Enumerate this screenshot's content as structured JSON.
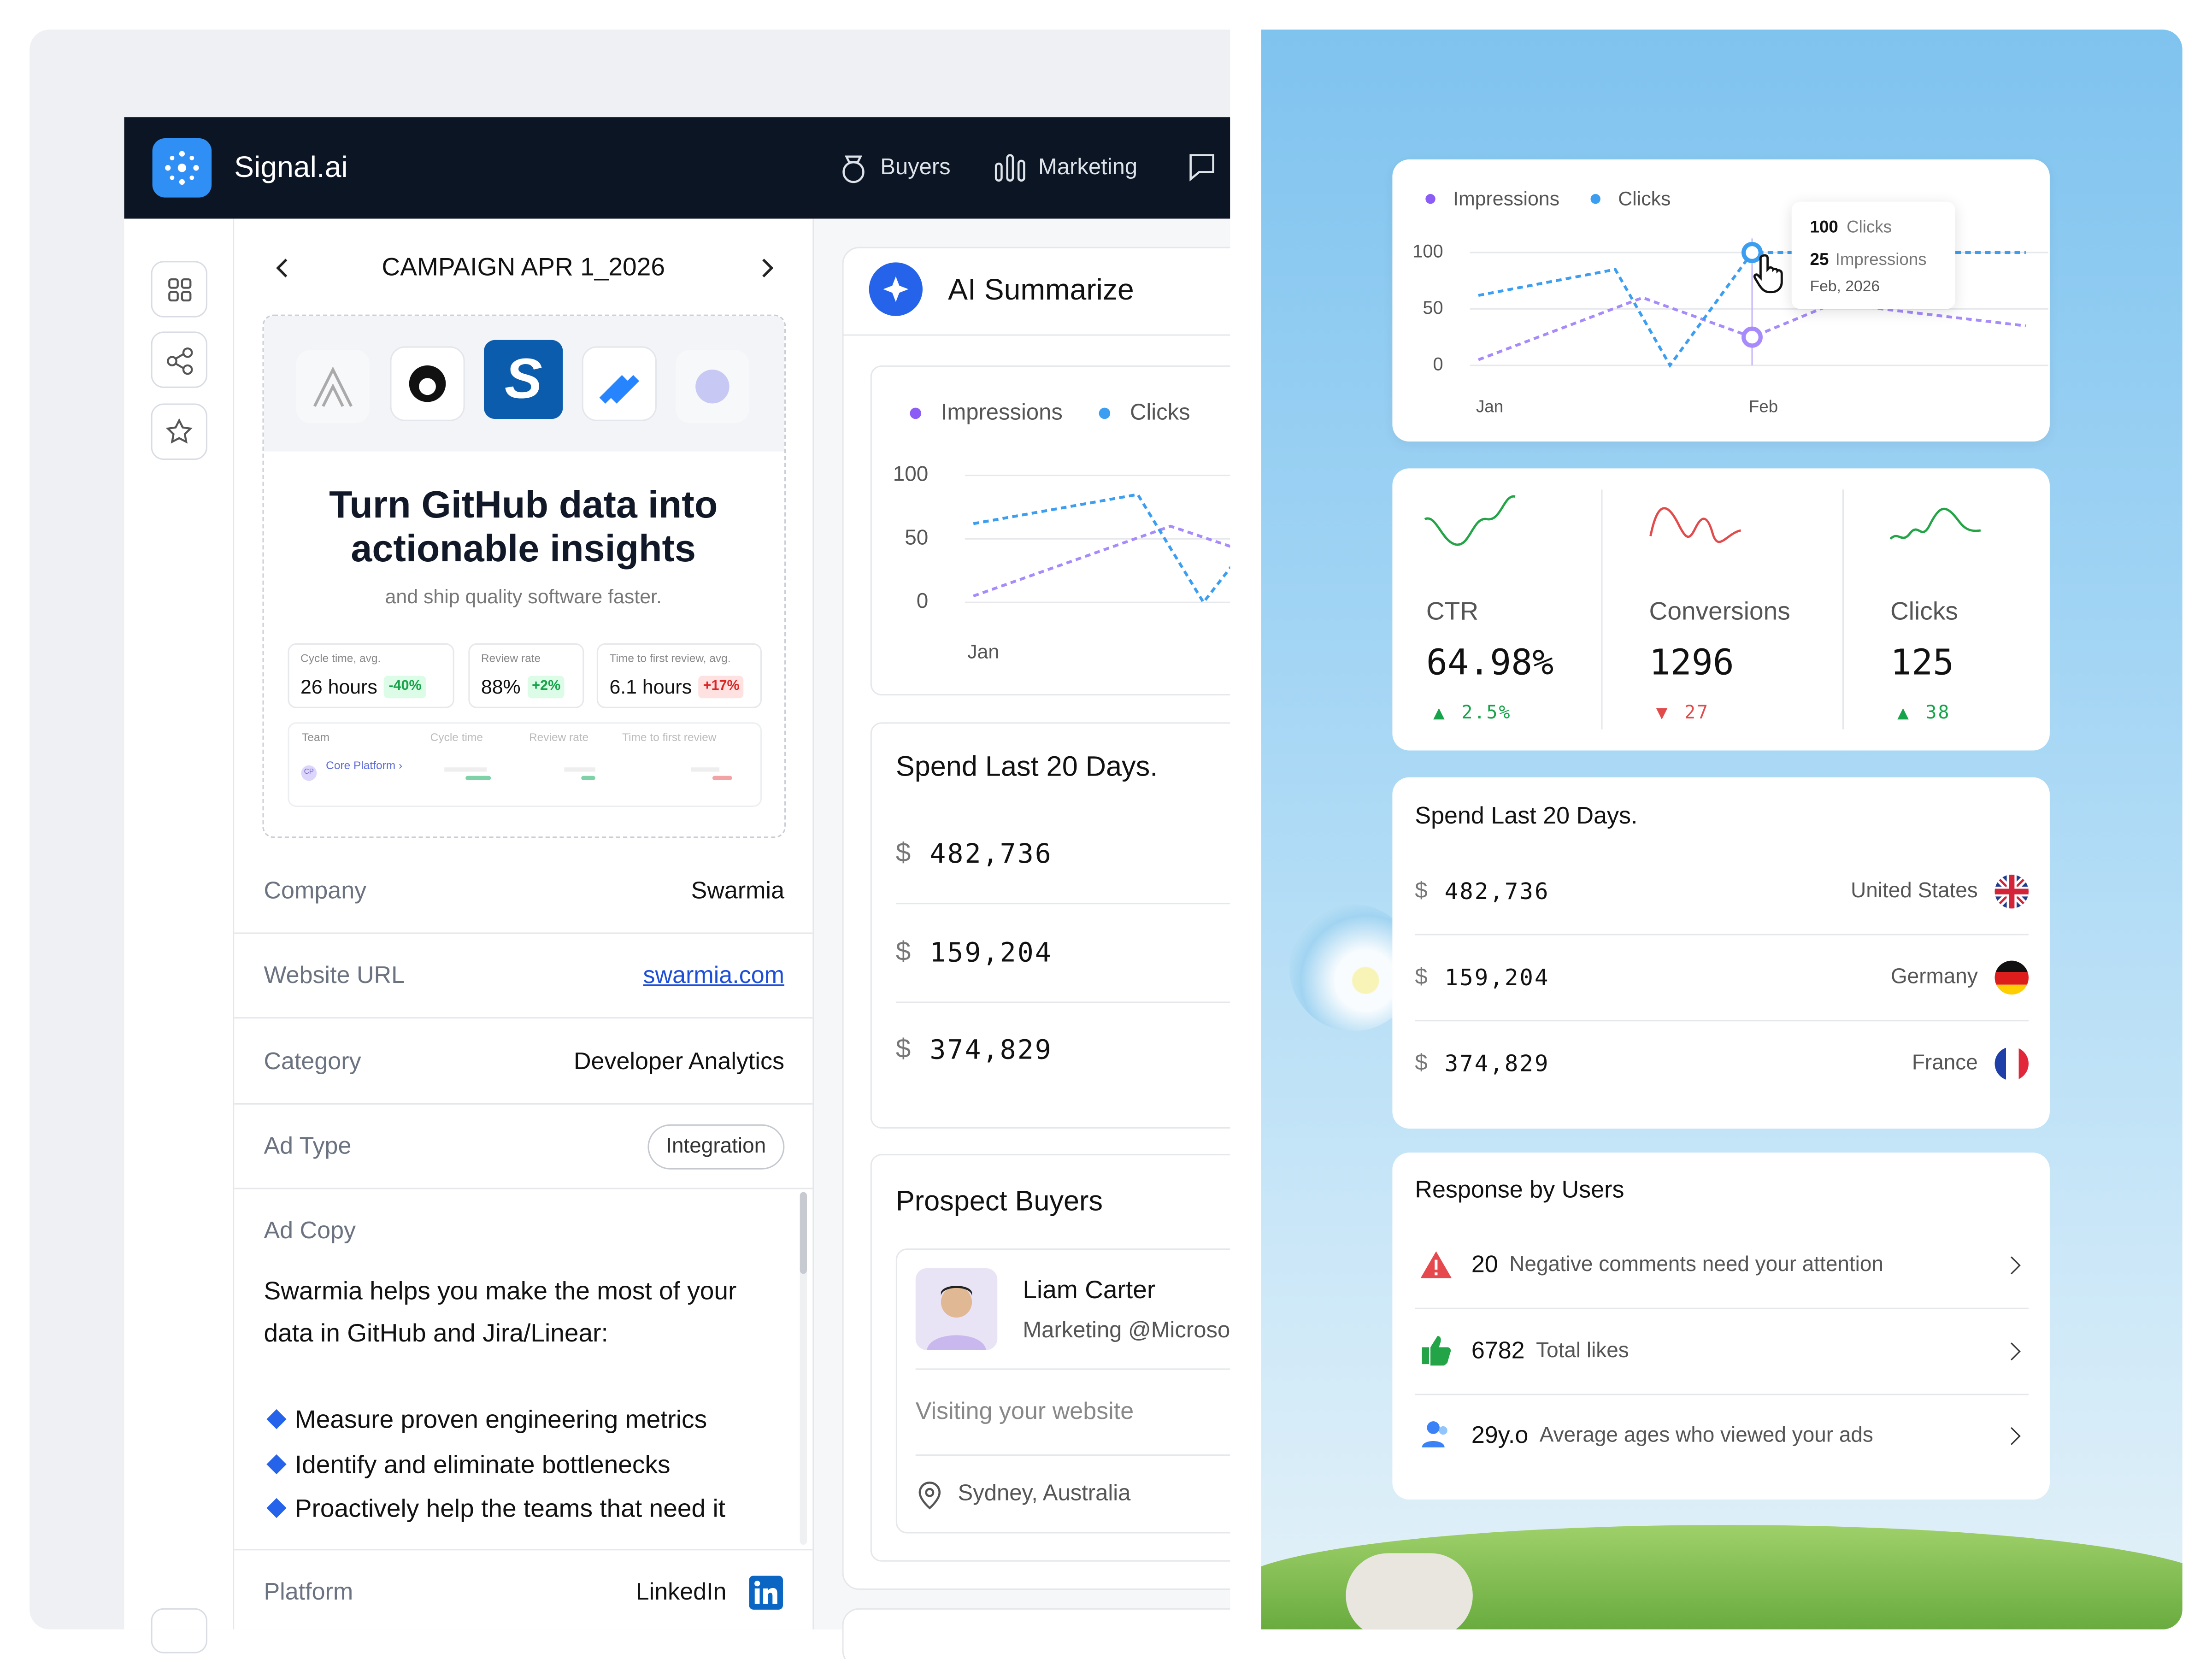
{
  "app": {
    "brand": "Signal.ai",
    "nav": [
      "Buyers",
      "Marketing"
    ]
  },
  "campaign": {
    "title": "CAMPAIGN APR 1_2026",
    "headline": [
      "Turn GitHub data into",
      "actionable insights"
    ],
    "subline": "and ship quality software faster.",
    "metrics": [
      {
        "label": "Cycle time, avg.",
        "value": "26 hours",
        "delta": "-40%",
        "tone": "good"
      },
      {
        "label": "Review rate",
        "value": "88%",
        "delta": "+2%",
        "tone": "good"
      },
      {
        "label": "Time to first review, avg.",
        "value": "6.1 hours",
        "delta": "+17%",
        "tone": "bad"
      }
    ],
    "team_table": {
      "headers": [
        "Team",
        "Cycle time",
        "Review rate",
        "Time to first review"
      ],
      "row": {
        "avatar": "CP",
        "team": "Core Platform ›"
      }
    }
  },
  "details": {
    "rows": [
      {
        "label": "Company",
        "value": "Swarmia",
        "style": "text"
      },
      {
        "label": "Website URL",
        "value": "swarmia.com",
        "style": "link"
      },
      {
        "label": "Category",
        "value": "Developer Analytics",
        "style": "text"
      },
      {
        "label": "Ad Type",
        "value": "Integration",
        "style": "pill"
      }
    ],
    "ad_copy": {
      "label": "Ad Copy",
      "intro": "Swarmia helps you make the most of your data in GitHub and Jira/Linear:",
      "bullets": [
        "Measure proven engineering metrics",
        "Identify and eliminate bottlenecks",
        "Proactively help the teams that need it"
      ]
    },
    "platform": {
      "label": "Platform",
      "value": "LinkedIn"
    }
  },
  "summary": {
    "title": "AI Summarize"
  },
  "chart_data": {
    "type": "line",
    "series": [
      {
        "name": "Impressions",
        "color": "#a78bfa",
        "x": [
          0,
          0.6,
          1,
          1.3,
          2
        ],
        "values": [
          5,
          60,
          25,
          55,
          35
        ]
      },
      {
        "name": "Clicks",
        "color": "#3b9ef0",
        "x": [
          0,
          0.5,
          0.7,
          1,
          1.5,
          2
        ],
        "values": [
          62,
          85,
          0,
          100,
          100,
          100
        ]
      }
    ],
    "xlim": [
      0,
      2
    ],
    "xticks": [
      {
        "value": 0,
        "label": "Jan"
      },
      {
        "value": 1,
        "label": "Feb"
      }
    ],
    "ylim": [
      0,
      100
    ],
    "yticks": [
      0,
      50,
      100
    ],
    "grid": true,
    "highlight_x": 1
  },
  "tooltip": {
    "clicks_value": "100",
    "clicks_label": "Clicks",
    "impressions_value": "25",
    "impressions_label": "Impressions",
    "date": "Feb, 2026"
  },
  "stats": [
    {
      "label": "CTR",
      "value": "64.98%",
      "change": "2.5%",
      "direction": "up"
    },
    {
      "label": "Conversions",
      "value": "1296",
      "change": "27",
      "direction": "down"
    },
    {
      "label": "Clicks",
      "value": "125",
      "change": "38",
      "direction": "up"
    }
  ],
  "spend": {
    "title": "Spend Last 20 Days.",
    "currency": "$",
    "rows": [
      {
        "amount": "482,736",
        "country": "United States"
      },
      {
        "amount": "159,204",
        "country": "Germany"
      },
      {
        "amount": "374,829",
        "country": "France"
      }
    ]
  },
  "responses": {
    "title": "Response by Users",
    "items": [
      {
        "value": "20",
        "text": "Negative comments need your attention"
      },
      {
        "value": "6782",
        "text": "Total likes"
      },
      {
        "value": "29y.o",
        "text": "Average ages who viewed your ads"
      }
    ]
  },
  "prospects": {
    "title": "Prospect Buyers",
    "name": "Liam Carter",
    "role": "Marketing @Microsoft",
    "activity": "Visiting your website",
    "location": "Sydney, Australia"
  }
}
